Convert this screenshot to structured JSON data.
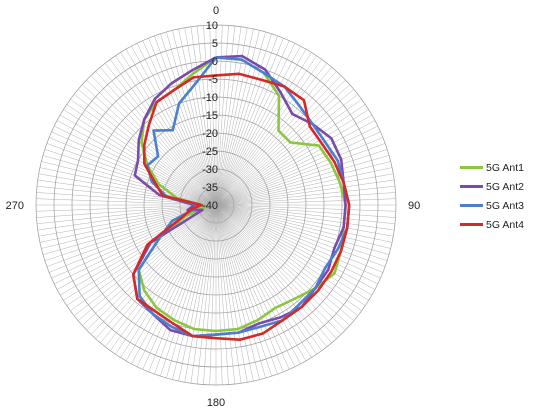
{
  "chart_data": {
    "type": "line",
    "polar": true,
    "title": "",
    "angle_labels": [
      {
        "angle": 0,
        "text": "0"
      },
      {
        "angle": 90,
        "text": "90"
      },
      {
        "angle": 180,
        "text": "180"
      },
      {
        "angle": 270,
        "text": "270"
      }
    ],
    "radial_axis": {
      "min": -40,
      "max": 10,
      "step": 5,
      "tick_labels": [
        "10",
        "5",
        "0",
        "-5",
        "-10",
        "-15",
        "-20",
        "-25",
        "-30",
        "-35",
        "-40"
      ]
    },
    "angular_spoke_step_deg": 2,
    "grid": true,
    "legend_position": "right",
    "angles": [
      0,
      10,
      20,
      30,
      40,
      50,
      60,
      70,
      80,
      90,
      100,
      110,
      120,
      130,
      140,
      150,
      160,
      170,
      180,
      190,
      200,
      210,
      220,
      230,
      240,
      250,
      260,
      270,
      280,
      290,
      300,
      310,
      320,
      330,
      340,
      350
    ],
    "series": [
      {
        "name": "5G Ant1",
        "color": "#8cc63f",
        "values": [
          1,
          1,
          -1,
          -5,
          -13,
          -13,
          -7,
          -6,
          -5,
          -4,
          -4,
          -3,
          -2,
          -4,
          -6,
          -7,
          -6,
          -5,
          -5,
          -5,
          -6,
          -7,
          -9,
          -12,
          -22,
          -31,
          -37,
          -36,
          -29,
          -23,
          -18,
          -13,
          -9,
          -7,
          -6,
          -3
        ]
      },
      {
        "name": "5G Ant2",
        "color": "#7b4bab",
        "values": [
          1,
          2,
          0,
          -4,
          -7,
          -5,
          -3,
          -3,
          -4,
          -4,
          -4,
          -5,
          -4,
          -4,
          -3,
          -4,
          -5,
          -4,
          -4,
          -3,
          -3,
          -5,
          -6,
          -10,
          -19,
          -36,
          -32,
          -34,
          -24,
          -16,
          -15,
          -12,
          -9,
          -6,
          -4,
          -2
        ]
      },
      {
        "name": "5G Ant3",
        "color": "#4a7fd1",
        "values": [
          1,
          1,
          -1,
          -2,
          -4,
          -5,
          -5,
          -4,
          -4,
          -3,
          -3,
          -4,
          -5,
          -4,
          -4,
          -3,
          -4,
          -4,
          -4,
          -3,
          -4,
          -5,
          -7,
          -12,
          -22,
          -27,
          -34,
          -35,
          -26,
          -21,
          -18,
          -19,
          -13,
          -16,
          -10,
          -6
        ]
      },
      {
        "name": "5G Ant4",
        "color": "#d42a2a",
        "values": [
          -4,
          -3,
          -3,
          -2,
          -2,
          -6,
          -6,
          -5,
          -4,
          -3,
          -3,
          -3,
          -3,
          -3,
          -3,
          -3,
          -2,
          -2,
          -3,
          -3,
          -5,
          -6,
          -6,
          -10,
          -18,
          -30,
          -33,
          -36,
          -25,
          -22,
          -17,
          -14,
          -11,
          -7,
          -6,
          -4
        ]
      }
    ]
  }
}
